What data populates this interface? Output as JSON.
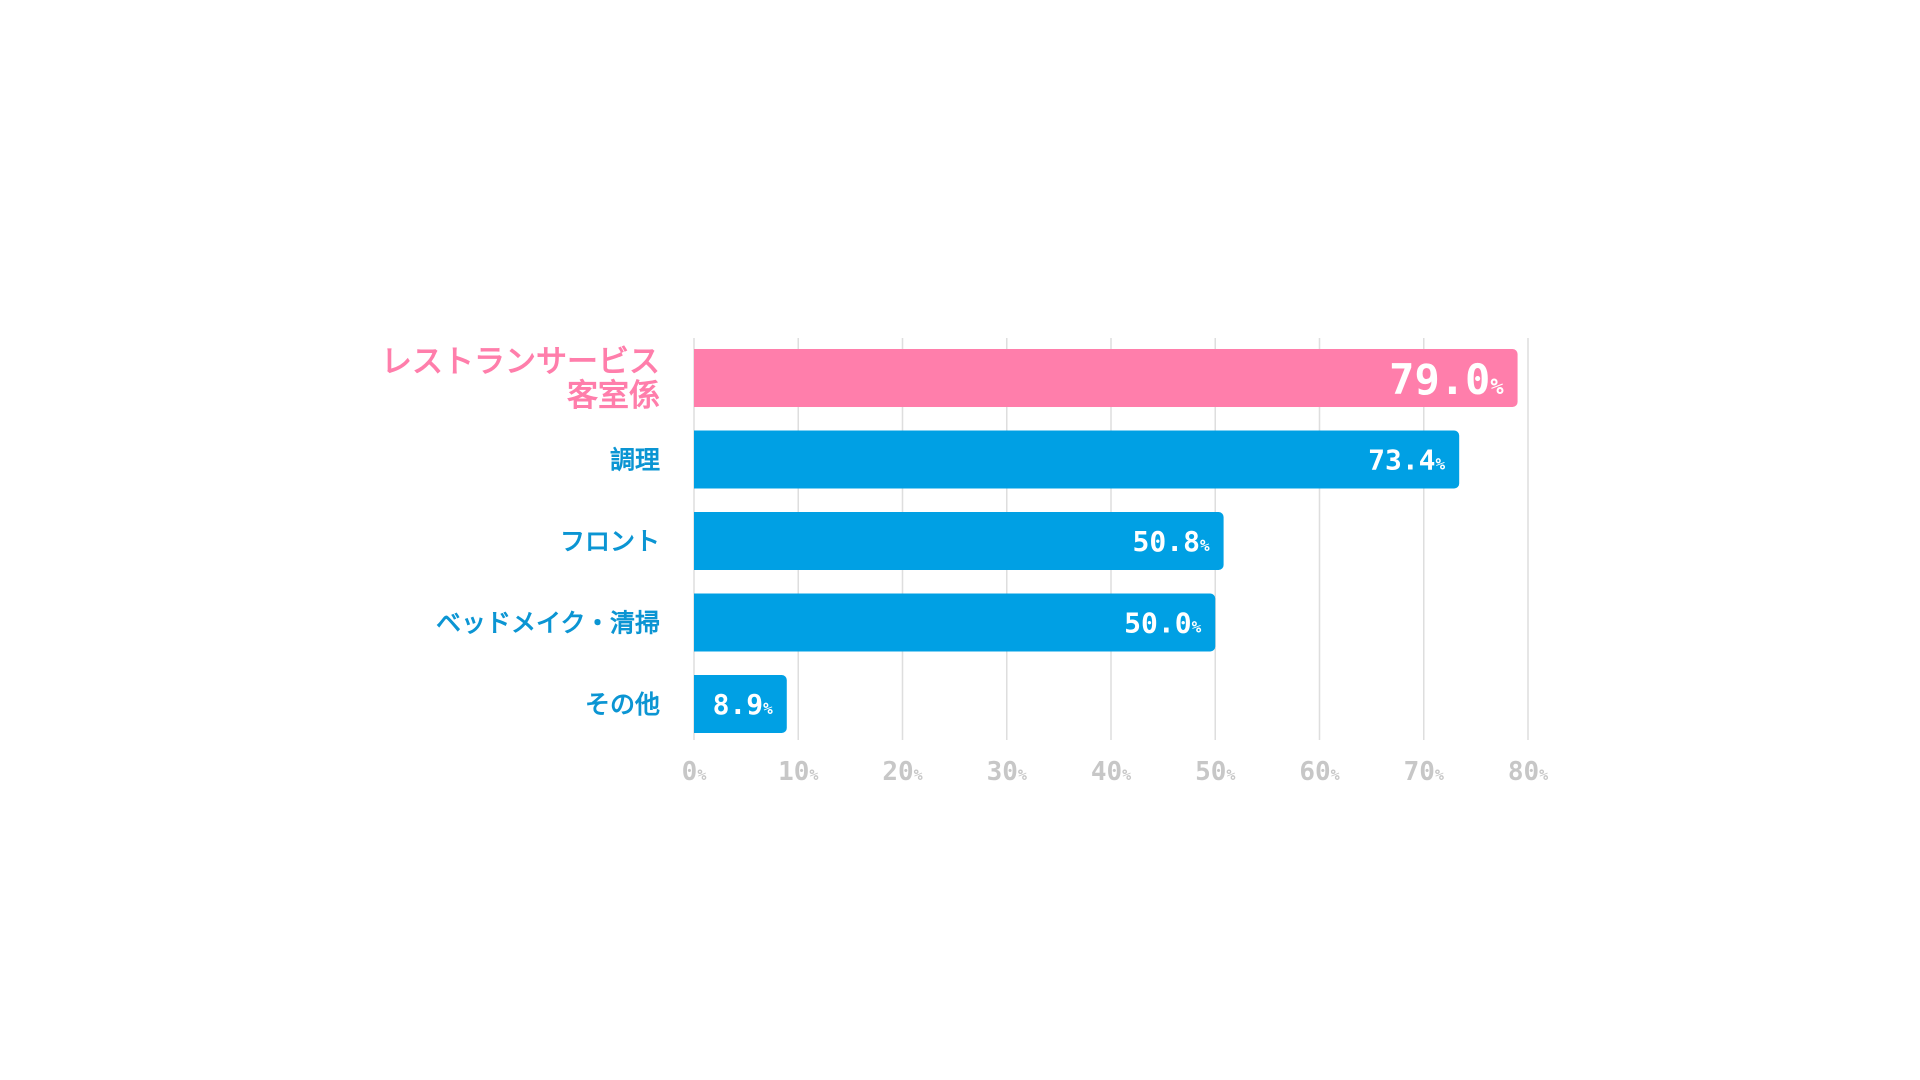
{
  "chart_data": {
    "type": "bar",
    "orientation": "horizontal",
    "title": "",
    "xlabel": "",
    "ylabel": "",
    "unit": "%",
    "xlim": [
      0,
      80
    ],
    "ticks": [
      0,
      10,
      20,
      30,
      40,
      50,
      60,
      70,
      80
    ],
    "tick_labels": [
      "0",
      "10",
      "20",
      "30",
      "40",
      "50",
      "60",
      "70",
      "80"
    ],
    "grid": true,
    "legend": "none",
    "categories": [
      {
        "lines": [
          "レストランサービス",
          "客室係"
        ],
        "value": 79.0,
        "value_label": "79.0",
        "highlight": true
      },
      {
        "lines": [
          "調理"
        ],
        "value": 73.4,
        "value_label": "73.4",
        "highlight": false
      },
      {
        "lines": [
          "フロント"
        ],
        "value": 50.8,
        "value_label": "50.8",
        "highlight": false
      },
      {
        "lines": [
          "ベッドメイク・清掃"
        ],
        "value": 50.0,
        "value_label": "50.0",
        "highlight": false
      },
      {
        "lines": [
          "その他"
        ],
        "value": 8.9,
        "value_label": "8.9",
        "highlight": false
      }
    ],
    "colors": {
      "highlight": "#ff7eab",
      "bar": "#00a0e4",
      "highlight_label": "#ff7eab",
      "label": "#0b95d3",
      "grid": "#dedede",
      "tick": "#c7c7c7"
    }
  }
}
